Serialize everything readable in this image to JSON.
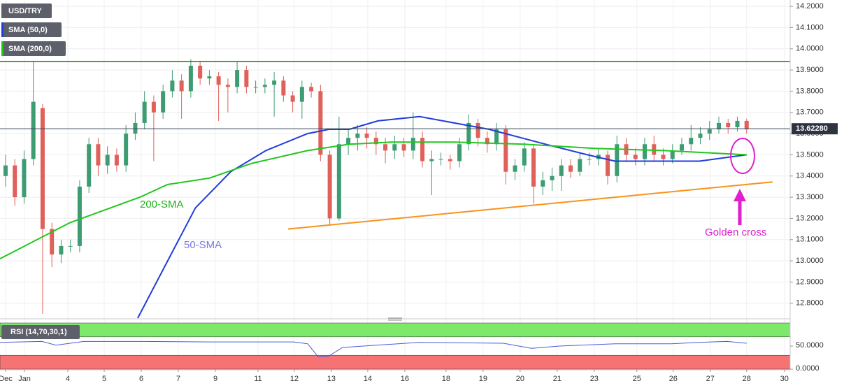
{
  "chart_data": [
    {
      "type": "candlestick",
      "title": "USD/TRY",
      "x": [
        0,
        1,
        2,
        3,
        4,
        5,
        6,
        7,
        8,
        9,
        10,
        11,
        12,
        13,
        14,
        15,
        16,
        17,
        18,
        19,
        20,
        21,
        22,
        23,
        24,
        25,
        26,
        27,
        28,
        29,
        30,
        31,
        32,
        33,
        34,
        35,
        36,
        37,
        38,
        39,
        40,
        41,
        42,
        43,
        44,
        45,
        46,
        47,
        48,
        49,
        50,
        51,
        52,
        53,
        54,
        55,
        56,
        57,
        58,
        59,
        60,
        61,
        62,
        63,
        64,
        65,
        66,
        67,
        68,
        69,
        70,
        71,
        72,
        73,
        74,
        75,
        76,
        77,
        78,
        79,
        80
      ],
      "open": [
        13.4,
        13.45,
        13.3,
        13.48,
        13.72,
        13.15,
        13.03,
        13.07,
        13.07,
        13.35,
        13.55,
        13.45,
        13.5,
        13.45,
        13.6,
        13.65,
        13.75,
        13.7,
        13.8,
        13.85,
        13.8,
        13.92,
        13.86,
        13.87,
        13.83,
        13.82,
        13.9,
        13.82,
        13.82,
        13.83,
        13.85,
        13.78,
        13.75,
        13.82,
        13.8,
        13.5,
        13.2,
        13.55,
        13.58,
        13.6,
        13.58,
        13.55,
        13.52,
        13.55,
        13.52,
        13.58,
        13.47,
        13.48,
        13.48,
        13.47,
        13.55,
        13.65,
        13.58,
        13.55,
        13.62,
        13.42,
        13.45,
        13.53,
        13.35,
        13.38,
        13.4,
        13.45,
        13.42,
        13.48,
        13.48,
        13.5,
        13.4,
        13.55,
        13.5,
        13.48,
        13.55,
        13.5,
        13.48,
        13.52,
        13.55,
        13.58,
        13.6,
        13.62,
        13.65,
        13.63,
        13.66
      ],
      "high": [
        13.5,
        13.48,
        13.52,
        13.94,
        13.74,
        13.18,
        13.1,
        13.1,
        13.38,
        13.58,
        13.58,
        13.54,
        13.53,
        13.64,
        13.7,
        13.8,
        13.78,
        13.83,
        13.9,
        13.88,
        13.95,
        13.94,
        13.9,
        13.89,
        13.86,
        13.94,
        13.92,
        13.85,
        13.86,
        13.89,
        13.87,
        13.8,
        13.85,
        13.84,
        13.83,
        13.52,
        13.68,
        13.62,
        13.64,
        13.63,
        13.61,
        13.58,
        13.59,
        13.58,
        13.7,
        13.61,
        13.52,
        13.51,
        13.5,
        13.58,
        13.69,
        13.67,
        13.61,
        13.65,
        13.64,
        13.48,
        13.56,
        13.55,
        13.42,
        13.44,
        13.48,
        13.48,
        13.51,
        13.51,
        13.53,
        13.52,
        13.59,
        13.58,
        13.53,
        13.58,
        13.59,
        13.53,
        13.55,
        13.58,
        13.64,
        13.63,
        13.66,
        13.68,
        13.67,
        13.68,
        13.67
      ],
      "low": [
        13.35,
        13.26,
        13.27,
        13.45,
        12.75,
        12.97,
        12.99,
        13.04,
        13.04,
        13.32,
        13.4,
        13.41,
        13.42,
        13.42,
        13.57,
        13.62,
        13.47,
        13.67,
        13.77,
        13.67,
        13.77,
        13.83,
        13.83,
        13.66,
        13.7,
        13.79,
        13.79,
        13.79,
        13.79,
        13.68,
        13.75,
        13.7,
        13.67,
        13.77,
        13.47,
        13.17,
        13.19,
        13.5,
        13.52,
        13.53,
        13.5,
        13.46,
        13.48,
        13.49,
        13.48,
        13.44,
        13.31,
        13.45,
        13.43,
        13.44,
        13.52,
        13.54,
        13.51,
        13.52,
        13.36,
        13.38,
        13.42,
        13.27,
        13.31,
        13.33,
        13.33,
        13.39,
        13.4,
        13.45,
        13.45,
        13.36,
        13.37,
        13.47,
        13.45,
        13.45,
        13.47,
        13.45,
        13.46,
        13.5,
        13.52,
        13.55,
        13.57,
        13.6,
        13.6,
        13.61,
        13.6
      ],
      "close": [
        13.45,
        13.3,
        13.48,
        13.75,
        13.15,
        13.03,
        13.07,
        13.07,
        13.35,
        13.55,
        13.45,
        13.5,
        13.45,
        13.6,
        13.65,
        13.75,
        13.7,
        13.8,
        13.85,
        13.8,
        13.92,
        13.86,
        13.87,
        13.83,
        13.82,
        13.9,
        13.82,
        13.82,
        13.83,
        13.85,
        13.78,
        13.75,
        13.82,
        13.8,
        13.5,
        13.2,
        13.55,
        13.58,
        13.6,
        13.58,
        13.55,
        13.52,
        13.55,
        13.52,
        13.58,
        13.47,
        13.48,
        13.48,
        13.47,
        13.55,
        13.65,
        13.58,
        13.55,
        13.62,
        13.42,
        13.45,
        13.53,
        13.35,
        13.38,
        13.4,
        13.45,
        13.42,
        13.48,
        13.48,
        13.5,
        13.4,
        13.55,
        13.5,
        13.48,
        13.55,
        13.5,
        13.48,
        13.52,
        13.55,
        13.58,
        13.6,
        13.62,
        13.65,
        13.63,
        13.66,
        13.62
      ],
      "up_color": "#3d9c72",
      "down_color": "#e0605a",
      "series": [
        {
          "name": "SMA (50,0)",
          "color": "#1f3ddb",
          "x": [
            14.27,
            17.5,
            20.5,
            24.3,
            28.1,
            32.6,
            34.9,
            37.1,
            40.2,
            44.7,
            52.2,
            58.3,
            62.8,
            65.8,
            71.1,
            74.9,
            80
          ],
          "values": [
            12.73,
            13.0,
            13.25,
            13.42,
            13.52,
            13.6,
            13.62,
            13.62,
            13.66,
            13.68,
            13.62,
            13.55,
            13.5,
            13.47,
            13.47,
            13.47,
            13.5
          ]
        },
        {
          "name": "SMA (200,0)",
          "color": "#22c61e",
          "x": [
            -0.6,
            6.95,
            14.5,
            17.5,
            22.0,
            26.6,
            32.6,
            37.1,
            41.7,
            48.5,
            56.0,
            63.6,
            71.1,
            75.6,
            80
          ],
          "values": [
            13.01,
            13.18,
            13.3,
            13.36,
            13.39,
            13.46,
            13.52,
            13.55,
            13.56,
            13.56,
            13.55,
            13.53,
            13.52,
            13.51,
            13.5
          ]
        }
      ],
      "annotations": [
        {
          "text": "200-SMA",
          "color": "#22b01e"
        },
        {
          "text": "50-SMA",
          "color": "#7a7ae0"
        },
        {
          "text": "Golden cross",
          "color": "#e020d0"
        }
      ],
      "resistance": 13.94,
      "resistance_color": "#2a6e1e",
      "trendline": {
        "x": [
          30.5,
          82.8
        ],
        "values": [
          13.15,
          13.372
        ],
        "color": "#f7931a"
      },
      "last_price": {
        "value": 13.6228,
        "label": "13.62280"
      },
      "xlim": [
        -0.6,
        84.7
      ],
      "ylim": [
        12.73,
        14.23
      ],
      "xticks": [
        {
          "value": 0.0,
          "label": "Dec"
        },
        {
          "value": 2.04,
          "label": "Jan"
        },
        {
          "value": 6.72,
          "label": "4"
        },
        {
          "value": 10.65,
          "label": "5"
        },
        {
          "value": 14.65,
          "label": "6"
        },
        {
          "value": 18.65,
          "label": "7"
        },
        {
          "value": 22.65,
          "label": "9"
        },
        {
          "value": 27.25,
          "label": "11"
        },
        {
          "value": 31.17,
          "label": "12"
        },
        {
          "value": 35.17,
          "label": "13"
        },
        {
          "value": 39.1,
          "label": "14"
        },
        {
          "value": 43.1,
          "label": "16"
        },
        {
          "value": 47.55,
          "label": "18"
        },
        {
          "value": 51.55,
          "label": "19"
        },
        {
          "value": 55.55,
          "label": "20"
        },
        {
          "value": 59.55,
          "label": "21"
        },
        {
          "value": 63.55,
          "label": "23"
        },
        {
          "value": 68.15,
          "label": "25"
        },
        {
          "value": 72.08,
          "label": "26"
        },
        {
          "value": 76.08,
          "label": "27"
        },
        {
          "value": 80.0,
          "label": "28"
        },
        {
          "value": 84.08,
          "label": "30"
        }
      ],
      "yticks": [
        {
          "value": 14.2,
          "label": "14.2000"
        },
        {
          "value": 14.1,
          "label": "14.1000"
        },
        {
          "value": 14.0,
          "label": "14.0000"
        },
        {
          "value": 13.9,
          "label": "13.9000"
        },
        {
          "value": 13.8,
          "label": "13.8000"
        },
        {
          "value": 13.7,
          "label": "13.7000"
        },
        {
          "value": 13.6,
          "label": "13.6000"
        },
        {
          "value": 13.5,
          "label": "13.5000"
        },
        {
          "value": 13.4,
          "label": "13.4000"
        },
        {
          "value": 13.3,
          "label": "13.3000"
        },
        {
          "value": 13.2,
          "label": "13.2000"
        },
        {
          "value": 13.1,
          "label": "13.1000"
        },
        {
          "value": 13.0,
          "label": "13.0000"
        },
        {
          "value": 12.9,
          "label": "12.9000"
        },
        {
          "value": 12.8,
          "label": "12.8000"
        }
      ],
      "grid": true
    },
    {
      "type": "line",
      "title": "RSI (14,70,30,1)",
      "color": "#4c5bd4",
      "x": [
        -0.6,
        3.93,
        5.44,
        8.46,
        14.49,
        22.04,
        31.1,
        32.61,
        33.74,
        34.87,
        36.38,
        44.68,
        53.74,
        56.76,
        59.78,
        65.82,
        71.85,
        74.87,
        77.89,
        80
      ],
      "values": [
        58,
        60,
        52,
        60,
        60,
        59,
        59,
        55,
        27,
        28,
        47,
        58,
        56,
        45,
        50,
        55,
        55,
        58,
        60,
        56
      ],
      "overbought": 70,
      "oversold": 30,
      "xlim": [
        -0.6,
        84.7
      ],
      "ylim": [
        0,
        100
      ],
      "yticks": [
        {
          "value": 50,
          "label": "50.0000"
        },
        {
          "value": 0,
          "label": "0.0000"
        }
      ]
    }
  ]
}
